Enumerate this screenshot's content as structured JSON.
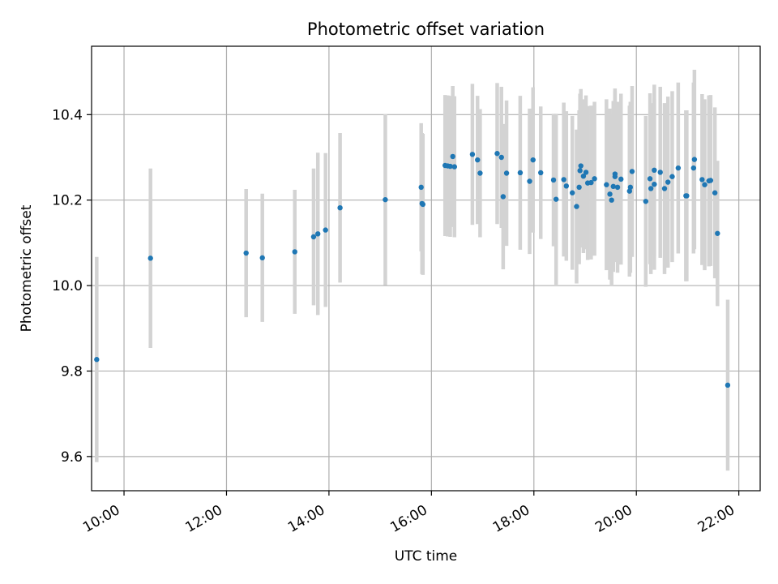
{
  "chart_data": {
    "type": "scatter",
    "title": "Photometric offset variation",
    "xlabel": "UTC time",
    "ylabel": "Photometric offset",
    "xlim": [
      "09:22",
      "22:25"
    ],
    "ylim": [
      9.52,
      10.56
    ],
    "x_ticks": [
      "10:00",
      "12:00",
      "14:00",
      "16:00",
      "18:00",
      "20:00",
      "22:00"
    ],
    "y_ticks": [
      "9.6",
      "9.8",
      "10.0",
      "10.2",
      "10.4"
    ],
    "grid": true,
    "legend": "none",
    "colors": {
      "point": "#1f77b4",
      "errorbar": "#d3d3d3",
      "grid": "#b0b0b0"
    },
    "series": [
      {
        "x": [
          "09:28",
          "10:31",
          "12:23",
          "12:42",
          "13:20",
          "13:42",
          "13:47",
          "13:56",
          "14:13",
          "15:06",
          "15:48",
          "15:49",
          "15:50",
          "16:16",
          "16:19",
          "16:22",
          "16:25",
          "16:27",
          "16:48",
          "16:54",
          "16:57",
          "17:17",
          "17:22",
          "17:24",
          "17:28",
          "17:44",
          "17:55",
          "17:59",
          "18:08",
          "18:23",
          "18:26",
          "18:35",
          "18:38",
          "18:45",
          "18:50",
          "18:53",
          "18:54",
          "18:55",
          "18:58",
          "19:01",
          "19:03",
          "19:07",
          "19:11",
          "19:25",
          "19:29",
          "19:31",
          "19:33",
          "19:35",
          "19:35",
          "19:38",
          "19:42",
          "19:52",
          "19:53",
          "19:55",
          "20:11",
          "20:16",
          "20:17",
          "20:21",
          "20:21",
          "20:28",
          "20:33",
          "20:37",
          "20:42",
          "20:49",
          "20:58",
          "20:59",
          "21:07",
          "21:08",
          "21:17",
          "21:20",
          "21:25",
          "21:27",
          "21:32",
          "21:35",
          "21:47"
        ],
        "y": [
          9.827,
          10.064,
          10.076,
          10.065,
          10.079,
          10.114,
          10.121,
          10.13,
          10.182,
          10.201,
          10.23,
          10.192,
          10.19,
          10.281,
          10.28,
          10.279,
          10.302,
          10.278,
          10.307,
          10.294,
          10.263,
          10.309,
          10.3,
          10.208,
          10.263,
          10.264,
          10.244,
          10.294,
          10.264,
          10.247,
          10.202,
          10.248,
          10.233,
          10.217,
          10.185,
          10.23,
          10.269,
          10.28,
          10.256,
          10.265,
          10.24,
          10.241,
          10.25,
          10.236,
          10.214,
          10.2,
          10.232,
          10.261,
          10.255,
          10.23,
          10.249,
          10.221,
          10.23,
          10.267,
          10.197,
          10.25,
          10.227,
          10.27,
          10.237,
          10.265,
          10.227,
          10.242,
          10.255,
          10.275,
          10.21,
          10.21,
          10.275,
          10.295,
          10.248,
          10.236,
          10.245,
          10.246,
          10.217,
          10.122,
          9.767
        ],
        "err": [
          0.24,
          0.21,
          0.15,
          0.15,
          0.145,
          0.16,
          0.19,
          0.18,
          0.175,
          0.2,
          0.15,
          0.165,
          0.165,
          0.165,
          0.165,
          0.165,
          0.165,
          0.165,
          0.165,
          0.15,
          0.15,
          0.165,
          0.165,
          0.17,
          0.17,
          0.18,
          0.17,
          0.17,
          0.155,
          0.155,
          0.2,
          0.18,
          0.175,
          0.18,
          0.18,
          0.18,
          0.18,
          0.18,
          0.18,
          0.18,
          0.18,
          0.18,
          0.18,
          0.2,
          0.2,
          0.2,
          0.2,
          0.2,
          0.2,
          0.2,
          0.2,
          0.2,
          0.2,
          0.2,
          0.2,
          0.2,
          0.2,
          0.2,
          0.2,
          0.2,
          0.2,
          0.2,
          0.2,
          0.2,
          0.2,
          0.2,
          0.2,
          0.21,
          0.2,
          0.2,
          0.2,
          0.2,
          0.2,
          0.17,
          0.2
        ]
      }
    ]
  }
}
